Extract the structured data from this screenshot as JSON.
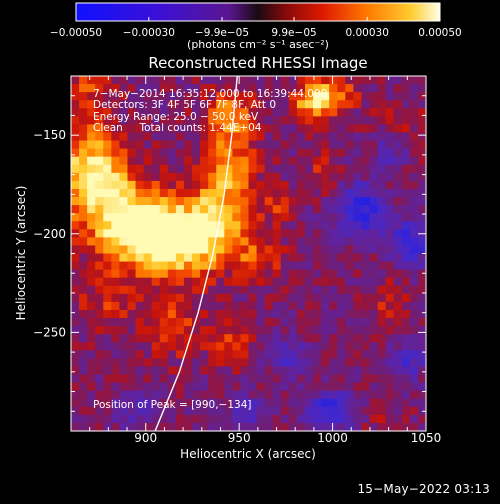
{
  "title": "Reconstructed RHESSI Image",
  "colorbar": {
    "tick_labels": [
      "−0.00050",
      "−0.00030",
      "−9.9e−05",
      "9.9e−05",
      "0.00030",
      "0.00050"
    ],
    "tick_values": [
      -0.0005,
      -0.0003,
      -9.9e-05,
      9.9e-05,
      0.0003,
      0.0005
    ],
    "range": [
      -0.0005,
      0.0005
    ],
    "unit_label": "(photons cm⁻² s⁻¹ asec⁻²)"
  },
  "info": {
    "line1": "7−May−2014 16:35:12.000 to 16:39:44.000",
    "line2": "Detectors: 3F 4F 5F 6F 7F 8F, Att 0",
    "line3": "Energy Range: 25.0 − 50.0 keV",
    "line4": "Clean     Total counts: 1.44E+04",
    "peak": "Position of Peak = [990,−134]"
  },
  "footer": {
    "date": "15−May−2022 03:13"
  },
  "chart_data": {
    "type": "heatmap",
    "title": "Reconstructed RHESSI Image",
    "xlabel": "Heliocentric X (arcsec)",
    "ylabel": "Heliocentric Y (arcsec)",
    "xlim": [
      860,
      1050
    ],
    "ylim": [
      -300,
      -120
    ],
    "x_ticks": [
      900,
      950,
      1000,
      1050
    ],
    "x_tick_labels": [
      "900",
      "950",
      "1000",
      "1050"
    ],
    "y_ticks": [
      -250,
      -200,
      -150
    ],
    "y_tick_labels": [
      "−250",
      "−200",
      "−150"
    ],
    "colormap": "red-temperature (blue→purple→red→orange→yellow→white)",
    "value_range": [
      -0.0005,
      0.0005
    ],
    "peak_position": [
      990,
      -134
    ],
    "limb_curve_points": [
      [
        905,
        -300
      ],
      [
        918,
        -270
      ],
      [
        928,
        -240
      ],
      [
        936,
        -210
      ],
      [
        942,
        -180
      ],
      [
        946,
        -150
      ],
      [
        949,
        -120
      ]
    ],
    "grid_description": "emission: bright band from upper-left (865,-165) diagonally to (930,-210); patches near (990,-134),(945,-145),(915,-245); negative/blue near (1015,-185),(1040,-205),(1000,-290)"
  }
}
